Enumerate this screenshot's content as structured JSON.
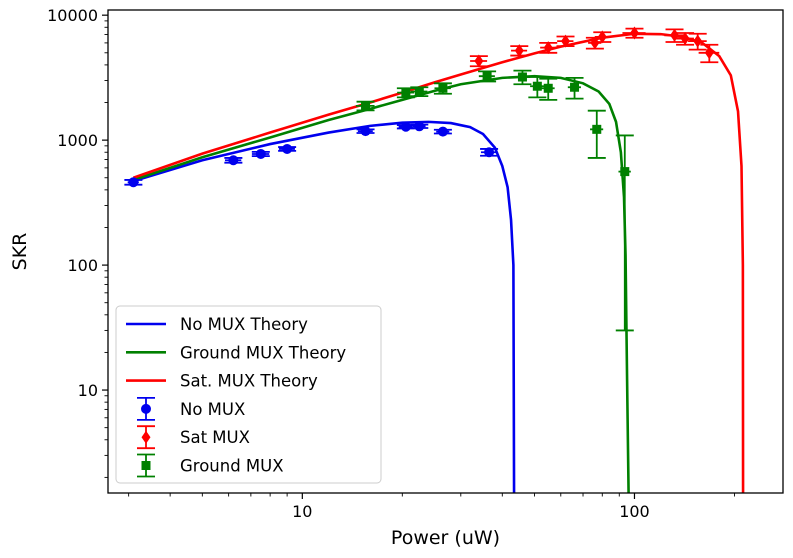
{
  "chart_data": {
    "type": "line",
    "title": "",
    "xlabel": "Power (uW)",
    "ylabel": "SKR",
    "xscale": "log",
    "yscale": "log",
    "xlim": [
      2.6,
      280
    ],
    "ylim": [
      1.5,
      11000
    ],
    "x_ticks": [
      {
        "value": 10,
        "label": "10"
      },
      {
        "value": 100,
        "label": "100"
      }
    ],
    "y_ticks": [
      {
        "value": 10,
        "label": "10"
      },
      {
        "value": 100,
        "label": "100"
      },
      {
        "value": 1000,
        "label": "1000"
      },
      {
        "value": 10000,
        "label": "10000"
      }
    ],
    "grid": false,
    "legend_position": "lower-left",
    "theory": [
      {
        "name": "No MUX Theory",
        "color": "#0000ee",
        "x": [
          3.1,
          5,
          8,
          12,
          16,
          20,
          24,
          28,
          32,
          35,
          38,
          40,
          41.5,
          42.5,
          43.2,
          43.4
        ],
        "y": [
          470,
          690,
          930,
          1150,
          1300,
          1380,
          1400,
          1370,
          1270,
          1120,
          870,
          620,
          420,
          230,
          100,
          1.5
        ]
      },
      {
        "name": "Ground MUX Theory",
        "color": "#008000",
        "x": [
          3.1,
          5,
          8,
          12,
          16,
          20,
          25,
          30,
          40,
          50,
          60,
          70,
          78,
          84,
          88,
          91,
          93,
          94,
          94.6,
          95.2,
          96
        ],
        "y": [
          480,
          730,
          1050,
          1450,
          1780,
          2100,
          2480,
          2800,
          3150,
          3250,
          3150,
          2850,
          2450,
          1950,
          1400,
          800,
          350,
          120,
          30,
          8,
          1.5
        ]
      },
      {
        "name": "Sat. MUX Theory",
        "color": "#ff0000",
        "x": [
          3.1,
          5,
          8,
          12,
          16,
          20,
          25,
          30,
          40,
          50,
          60,
          80,
          100,
          120,
          140,
          160,
          180,
          195,
          205,
          210,
          212,
          212.3
        ],
        "y": [
          500,
          780,
          1150,
          1600,
          2000,
          2400,
          2900,
          3350,
          4200,
          4950,
          5600,
          6600,
          7100,
          7050,
          6700,
          6000,
          4700,
          3300,
          1700,
          620,
          100,
          1.5
        ]
      }
    ],
    "measured": [
      {
        "name": "No MUX",
        "color": "#0000ee",
        "marker": "circle",
        "points": [
          {
            "x": 3.1,
            "y": 460,
            "xerr": 0.12,
            "yerr": 20
          },
          {
            "x": 6.2,
            "y": 690,
            "xerr": 0.35,
            "yerr": 30
          },
          {
            "x": 7.5,
            "y": 775,
            "xerr": 0.45,
            "yerr": 30
          },
          {
            "x": 9.0,
            "y": 850,
            "xerr": 0.5,
            "yerr": 30
          },
          {
            "x": 15.5,
            "y": 1180,
            "xerr": 0.8,
            "yerr": 40
          },
          {
            "x": 20.5,
            "y": 1280,
            "xerr": 1.0,
            "yerr": 40
          },
          {
            "x": 22.5,
            "y": 1290,
            "xerr": 1.0,
            "yerr": 40
          },
          {
            "x": 26.5,
            "y": 1170,
            "xerr": 1.2,
            "yerr": 40
          },
          {
            "x": 36.5,
            "y": 800,
            "xerr": 2.0,
            "yerr": 50
          }
        ]
      },
      {
        "name": "Sat MUX",
        "color": "#ff0000",
        "marker": "diamond",
        "points": [
          {
            "x": 34,
            "y": 4300,
            "xerr": 2.0,
            "yerr": 400
          },
          {
            "x": 45,
            "y": 5200,
            "xerr": 2.5,
            "yerr": 450
          },
          {
            "x": 55,
            "y": 5500,
            "xerr": 3.0,
            "yerr": 500
          },
          {
            "x": 62,
            "y": 6200,
            "xerr": 3.5,
            "yerr": 550
          },
          {
            "x": 76,
            "y": 6000,
            "xerr": 3.5,
            "yerr": 600
          },
          {
            "x": 80,
            "y": 6700,
            "xerr": 4.0,
            "yerr": 600
          },
          {
            "x": 100,
            "y": 7200,
            "xerr": 8.0,
            "yerr": 600
          },
          {
            "x": 132,
            "y": 6900,
            "xerr": 9.0,
            "yerr": 800
          },
          {
            "x": 142,
            "y": 6500,
            "xerr": 9.0,
            "yerr": 700
          },
          {
            "x": 155,
            "y": 6200,
            "xerr": 10.0,
            "yerr": 900
          },
          {
            "x": 168,
            "y": 5000,
            "xerr": 12.0,
            "yerr": 800
          }
        ]
      },
      {
        "name": "Ground MUX",
        "color": "#008000",
        "marker": "square",
        "points": [
          {
            "x": 15.5,
            "y": 1880,
            "xerr": 1.0,
            "yerr": 150
          },
          {
            "x": 20.5,
            "y": 2400,
            "xerr": 1.2,
            "yerr": 200
          },
          {
            "x": 22.5,
            "y": 2450,
            "xerr": 1.3,
            "yerr": 200
          },
          {
            "x": 26.5,
            "y": 2600,
            "xerr": 1.5,
            "yerr": 250
          },
          {
            "x": 36,
            "y": 3250,
            "xerr": 2.0,
            "yerr": 300
          },
          {
            "x": 46,
            "y": 3200,
            "xerr": 2.5,
            "yerr": 400
          },
          {
            "x": 51,
            "y": 2700,
            "xerr": 2.5,
            "yerr": 500
          },
          {
            "x": 55,
            "y": 2600,
            "xerr": 2.5,
            "yerr": 500
          },
          {
            "x": 66,
            "y": 2650,
            "xerr": 3.0,
            "yerr": 500
          },
          {
            "x": 77,
            "y": 1220,
            "xerr": 3.5,
            "yerr": 500
          },
          {
            "x": 93.5,
            "y": 560,
            "xerr": 4.0,
            "yerr": 530
          }
        ]
      }
    ]
  }
}
